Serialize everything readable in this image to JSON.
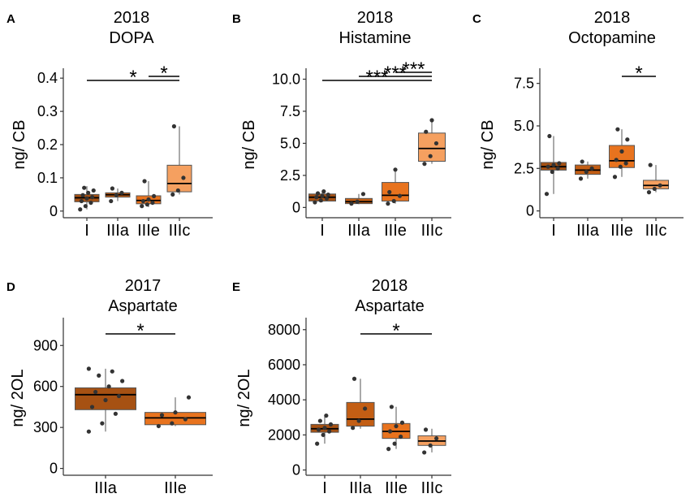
{
  "colors": {
    "I": "#a65113",
    "IIIa": "#c35e14",
    "IIIe": "#e8731e",
    "IIIc": "#f5a060",
    "axis": "#333333",
    "point": "#333333"
  },
  "chart_data": [
    {
      "type": "box",
      "panel_label": "A",
      "title_line1": "2018",
      "title_line2": "DOPA",
      "ylabel": "ng/ CB",
      "ylim": [
        -0.02,
        0.42
      ],
      "yticks": [
        0,
        0.1,
        0.2,
        0.3,
        0.4
      ],
      "ytick_labels": [
        "0",
        "0.1",
        "0.2",
        "0.3",
        "0.4"
      ],
      "categories": [
        "I",
        "IIIa",
        "IIIe",
        "IIIc"
      ],
      "boxes": [
        {
          "q1": 0.028,
          "median": 0.04,
          "q3": 0.05,
          "wlo": 0.005,
          "whi": 0.075,
          "points": [
            0.005,
            0.015,
            0.025,
            0.03,
            0.038,
            0.042,
            0.048,
            0.055,
            0.062,
            0.07
          ]
        },
        {
          "q1": 0.042,
          "median": 0.049,
          "q3": 0.055,
          "wlo": 0.03,
          "whi": 0.068,
          "points": [
            0.03,
            0.048,
            0.055,
            0.068
          ]
        },
        {
          "q1": 0.022,
          "median": 0.032,
          "q3": 0.046,
          "wlo": 0.012,
          "whi": 0.09,
          "points": [
            0.015,
            0.02,
            0.025,
            0.03,
            0.035,
            0.045,
            0.09
          ]
        },
        {
          "q1": 0.058,
          "median": 0.083,
          "q3": 0.138,
          "wlo": 0.05,
          "whi": 0.255,
          "points": [
            0.05,
            0.062,
            0.1,
            0.255
          ]
        }
      ],
      "significance": [
        {
          "from": 0,
          "to": 3,
          "label": "*"
        },
        {
          "from": 2,
          "to": 3,
          "label": "*"
        }
      ]
    },
    {
      "type": "box",
      "panel_label": "B",
      "title_line1": "2018",
      "title_line2": "Histamine",
      "ylabel": "ng/ CB",
      "ylim": [
        -0.8,
        10.6
      ],
      "yticks": [
        0,
        2.5,
        5.0,
        7.5,
        10.0
      ],
      "ytick_labels": [
        "0",
        "2.5",
        "5.0",
        "7.5",
        "10.0"
      ],
      "categories": [
        "I",
        "IIIa",
        "IIIe",
        "IIIc"
      ],
      "boxes": [
        {
          "q1": 0.5,
          "median": 0.8,
          "q3": 1.05,
          "wlo": 0.4,
          "whi": 1.3,
          "points": [
            0.4,
            0.55,
            0.7,
            0.8,
            0.9,
            1.0,
            1.1,
            1.25
          ]
        },
        {
          "q1": 0.3,
          "median": 0.45,
          "q3": 0.7,
          "wlo": 0.25,
          "whi": 1.05,
          "points": [
            0.3,
            0.45,
            1.05
          ]
        },
        {
          "q1": 0.5,
          "median": 0.95,
          "q3": 1.95,
          "wlo": 0.3,
          "whi": 2.95,
          "points": [
            0.3,
            0.5,
            0.9,
            1.2,
            2.95
          ]
        },
        {
          "q1": 3.6,
          "median": 4.6,
          "q3": 5.8,
          "wlo": 3.4,
          "whi": 6.8,
          "points": [
            3.4,
            4.0,
            5.0,
            5.9,
            6.8
          ]
        }
      ],
      "significance": [
        {
          "from": 0,
          "to": 3,
          "label": "***"
        },
        {
          "from": 1,
          "to": 3,
          "label": "***"
        },
        {
          "from": 2,
          "to": 3,
          "label": "***"
        }
      ]
    },
    {
      "type": "box",
      "panel_label": "C",
      "title_line1": "2018",
      "title_line2": "Octopamine",
      "ylabel": "ng/ CB",
      "ylim": [
        -0.4,
        8.2
      ],
      "yticks": [
        0,
        2.5,
        5.0,
        7.5
      ],
      "ytick_labels": [
        "0",
        "2.5",
        "5.0",
        "7.5"
      ],
      "categories": [
        "I",
        "IIIa",
        "IIIe",
        "IIIc"
      ],
      "boxes": [
        {
          "q1": 2.4,
          "median": 2.6,
          "q3": 2.85,
          "wlo": 1.0,
          "whi": 4.4,
          "points": [
            1.0,
            2.3,
            2.5,
            2.6,
            2.7,
            2.8,
            4.4
          ]
        },
        {
          "q1": 2.15,
          "median": 2.4,
          "q3": 2.7,
          "wlo": 1.9,
          "whi": 2.9,
          "points": [
            1.9,
            2.3,
            2.5,
            2.9
          ]
        },
        {
          "q1": 2.55,
          "median": 2.95,
          "q3": 3.85,
          "wlo": 2.0,
          "whi": 4.8,
          "points": [
            2.0,
            2.6,
            2.8,
            3.0,
            3.5,
            4.2,
            4.8
          ]
        },
        {
          "q1": 1.3,
          "median": 1.5,
          "q3": 1.8,
          "wlo": 1.1,
          "whi": 2.7,
          "points": [
            1.1,
            1.3,
            1.5,
            2.7
          ]
        }
      ],
      "significance": [
        {
          "from": 2,
          "to": 3,
          "label": "*"
        }
      ]
    },
    {
      "type": "box",
      "panel_label": "D",
      "title_line1": "2017",
      "title_line2": "Aspartate",
      "ylabel": "ng/  2OL",
      "ylim": [
        -50,
        1080
      ],
      "yticks": [
        0,
        300,
        600,
        900
      ],
      "ytick_labels": [
        "0",
        "300",
        "600",
        "900"
      ],
      "categories": [
        "IIIa",
        "IIIe"
      ],
      "category_colors": [
        "#a65113",
        "#e8731e"
      ],
      "boxes": [
        {
          "q1": 430,
          "median": 540,
          "q3": 590,
          "wlo": 270,
          "whi": 730,
          "points": [
            270,
            330,
            400,
            450,
            500,
            530,
            560,
            600,
            640,
            680,
            710,
            730
          ]
        },
        {
          "q1": 320,
          "median": 370,
          "q3": 410,
          "wlo": 310,
          "whi": 520,
          "points": [
            310,
            330,
            360,
            390,
            410,
            520
          ]
        }
      ],
      "significance": [
        {
          "from": 0,
          "to": 1,
          "label": "*"
        }
      ]
    },
    {
      "type": "box",
      "panel_label": "E",
      "title_line1": "2018",
      "title_line2": "Aspartate",
      "ylabel": "ng/  2OL",
      "ylim": [
        -300,
        8500
      ],
      "yticks": [
        0,
        2000,
        4000,
        6000,
        8000
      ],
      "ytick_labels": [
        "0",
        "2000",
        "4000",
        "6000",
        "8000"
      ],
      "categories": [
        "I",
        "IIIa",
        "IIIe",
        "IIIc"
      ],
      "boxes": [
        {
          "q1": 2150,
          "median": 2350,
          "q3": 2600,
          "wlo": 1500,
          "whi": 3100,
          "points": [
            1500,
            2000,
            2200,
            2300,
            2400,
            2600,
            2800,
            3100
          ]
        },
        {
          "q1": 2500,
          "median": 2900,
          "q3": 3850,
          "wlo": 2350,
          "whi": 5200,
          "points": [
            2400,
            2800,
            3500,
            5200
          ]
        },
        {
          "q1": 1800,
          "median": 2200,
          "q3": 2650,
          "wlo": 1200,
          "whi": 3600,
          "points": [
            1200,
            1500,
            1900,
            2200,
            2500,
            2700,
            3600
          ]
        },
        {
          "q1": 1400,
          "median": 1650,
          "q3": 1950,
          "wlo": 1000,
          "whi": 2350,
          "points": [
            1000,
            1400,
            1800,
            2300
          ]
        }
      ],
      "significance": [
        {
          "from": 1,
          "to": 3,
          "label": "*"
        }
      ]
    }
  ]
}
